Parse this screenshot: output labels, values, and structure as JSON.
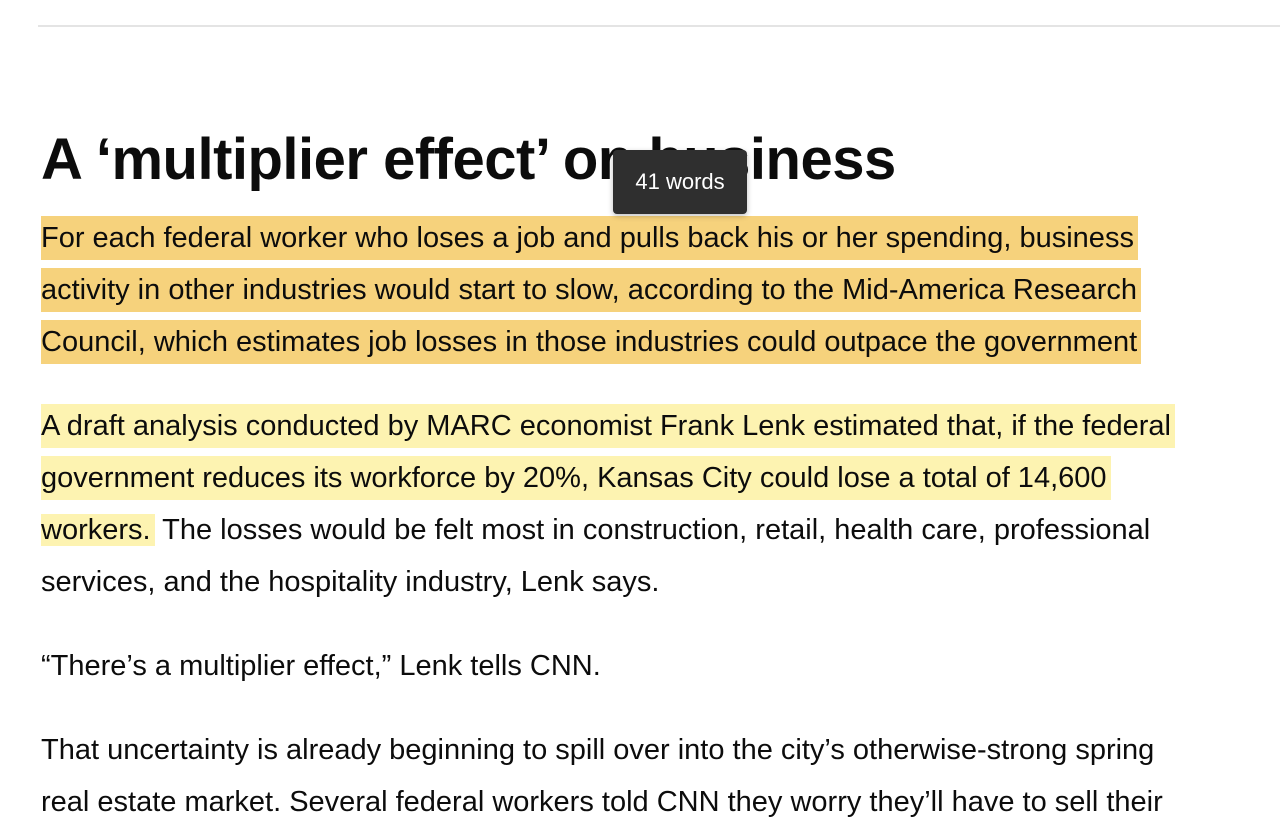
{
  "article": {
    "heading": "A ‘multiplier effect’ on business",
    "paragraphs": [
      {
        "lines": [
          "For each federal worker who loses a job and pulls back his or her spending, business",
          "activity in other industries would start to slow, according to the Mid-America Research",
          "Council, which estimates job losses in those industries could outpace the government"
        ]
      },
      {
        "lines": [
          "A draft analysis conducted by MARC economist Frank Lenk estimated that, if the federal",
          "government reduces its workforce by 20%, Kansas City could lose a total of 14,600"
        ],
        "line3_highlighted": "workers.",
        "line3_rest": "The losses would be felt most in construction, retail, health care, professional",
        "line4": "services, and the hospitality industry, Lenk says."
      },
      {
        "text": "“There’s a multiplier effect,” Lenk tells CNN."
      },
      {
        "lines": [
          "That uncertainty is already beginning to spill over into the city’s otherwise-strong spring",
          "real estate market. Several federal workers told CNN they worry they’ll have to sell their"
        ]
      }
    ]
  },
  "tooltip": {
    "text": "41 words"
  },
  "colors": {
    "highlight_selected": "#f6d27c",
    "highlight_light": "#fdf3b1",
    "tooltip_bg": "#2f2f2f"
  }
}
